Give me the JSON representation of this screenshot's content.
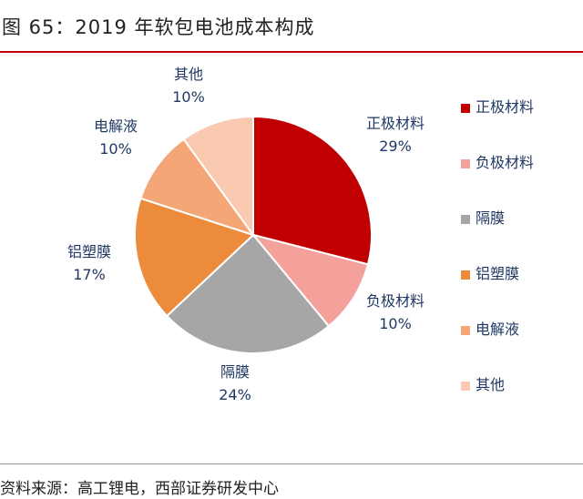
{
  "figure": {
    "title": "图 65：2019 年软包电池成本构成",
    "source": "资料来源：高工锂电，西部证券研发中心"
  },
  "colors": {
    "rule": "#c00000",
    "slices": [
      "#c00000",
      "#f4a19c",
      "#a6a6a6",
      "#ed8b3c",
      "#f4a677",
      "#f9c9b0"
    ]
  },
  "chart_data": {
    "type": "pie",
    "title": "",
    "slices": [
      {
        "name": "正极材料",
        "value": 29,
        "label": "29%"
      },
      {
        "name": "负极材料",
        "value": 10,
        "label": "10%"
      },
      {
        "name": "隔膜",
        "value": 24,
        "label": "24%"
      },
      {
        "name": "铝塑膜",
        "value": 17,
        "label": "17%"
      },
      {
        "name": "电解液",
        "value": 10,
        "label": "10%"
      },
      {
        "name": "其他",
        "value": 10,
        "label": "10%"
      }
    ],
    "legend_position": "right"
  }
}
